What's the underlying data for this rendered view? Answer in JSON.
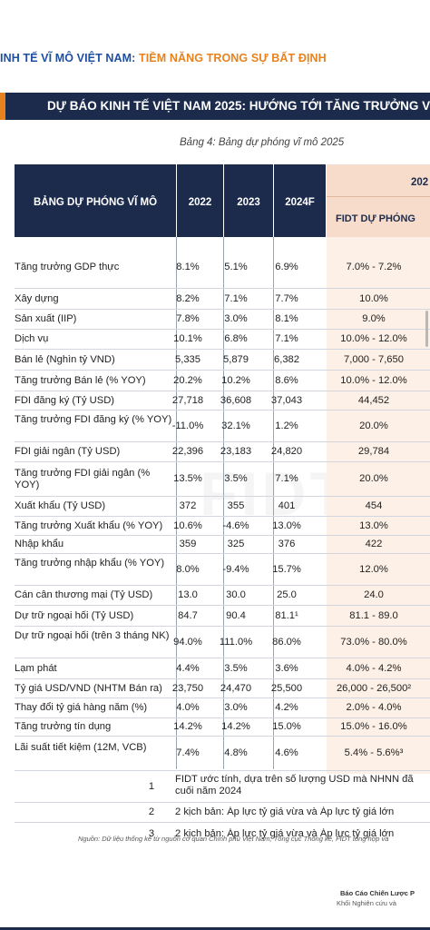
{
  "header": {
    "part1": "INH TẾ VĨ MÔ VIỆT NAM: ",
    "part2": "TIỀM NĂNG TRONG SỰ BẤT ĐỊNH"
  },
  "banner": {
    "title": "DỰ BÁO KINH TẾ VIỆT NAM 2025: HƯỚNG TỚI TĂNG TRƯỞNG V"
  },
  "caption": "Bảng 4: Bảng dự phóng vĩ mô 2025",
  "table": {
    "header": {
      "label": "BẢNG DỰ PHÓNG VĨ MÔ",
      "y2022": "2022",
      "y2023": "2023",
      "y2024": "2024F",
      "forecast_year": "202",
      "fidt": "FIDT DỰ PHÓNG"
    },
    "rows": [
      {
        "label": "Tăng trưởng GDP thực",
        "v1": "8.1%",
        "v2": "5.1%",
        "v3": "6.9%",
        "f": "7.0% - 7.2%"
      },
      {
        "label": "Xây dựng",
        "v1": "8.2%",
        "v2": "7.1%",
        "v3": "7.7%",
        "f": "10.0%"
      },
      {
        "label": "Sản xuất (IIP)",
        "v1": "7.8%",
        "v2": "3.0%",
        "v3": "8.1%",
        "f": "9.0%"
      },
      {
        "label": "Dịch vụ",
        "v1": "10.1%",
        "v2": "6.8%",
        "v3": "7.1%",
        "f": "10.0% - 12.0%"
      },
      {
        "label": "Bán lẻ (Nghìn tỷ VND)",
        "v1": "5,335",
        "v2": "5,879",
        "v3": "6,382",
        "f": "7,000 - 7,650"
      },
      {
        "label": "Tăng trưởng Bán lẻ (% YOY)",
        "v1": "20.2%",
        "v2": "10.2%",
        "v3": "8.6%",
        "f": "10.0% - 12.0%"
      },
      {
        "label": "FDI đăng ký (Tỷ USD)",
        "v1": "27,718",
        "v2": "36,608",
        "v3": "37,043",
        "f": "44,452"
      },
      {
        "label": "Tăng trưởng FDI đăng ký (% YOY)",
        "v1": "-11.0%",
        "v2": "32.1%",
        "v3": "1.2%",
        "f": "20.0%"
      },
      {
        "label": "FDI giải ngân (Tỷ USD)",
        "v1": "22,396",
        "v2": "23,183",
        "v3": "24,820",
        "f": "29,784"
      },
      {
        "label": "Tăng trưởng FDI giải ngân (% YOY)",
        "v1": "13.5%",
        "v2": "3.5%",
        "v3": "7.1%",
        "f": "20.0%"
      },
      {
        "label": "Xuất khẩu (Tỷ USD)",
        "v1": "372",
        "v2": "355",
        "v3": "401",
        "f": "454"
      },
      {
        "label": "Tăng trưởng Xuất khẩu (% YOY)",
        "v1": "10.6%",
        "v2": "-4.6%",
        "v3": "13.0%",
        "f": "13.0%"
      },
      {
        "label": "Nhập khẩu",
        "v1": "359",
        "v2": "325",
        "v3": "376",
        "f": "422"
      },
      {
        "label": "Tăng trưởng nhập khẩu (% YOY)",
        "v1": "8.0%",
        "v2": "-9.4%",
        "v3": "15.7%",
        "f": "12.0%"
      },
      {
        "label": "Cán cân thương mại (Tỷ USD)",
        "v1": "13.0",
        "v2": "30.0",
        "v3": "25.0",
        "f": "24.0"
      },
      {
        "label": "Dự trữ ngoại hối (Tỷ USD)",
        "v1": "84.7",
        "v2": "90.4",
        "v3": "81.1¹",
        "f": "81.1 - 89.0"
      },
      {
        "label": "Dự trữ ngoại hối (trên 3 tháng NK)",
        "v1": "94.0%",
        "v2": "111.0%",
        "v3": "86.0%",
        "f": "73.0% - 80.0%"
      },
      {
        "label": "Lạm phát",
        "v1": "4.4%",
        "v2": "3.5%",
        "v3": "3.6%",
        "f": "4.0% - 4.2%"
      },
      {
        "label": "Tỷ giá USD/VND (NHTM Bán ra)",
        "v1": "23,750",
        "v2": "24,470",
        "v3": "25,500",
        "f": "26,000 - 26,500²"
      },
      {
        "label": "Thay đổi tỷ giá hàng năm (%)",
        "v1": "4.0%",
        "v2": "3.0%",
        "v3": "4.2%",
        "f": "2.0% - 4.0%"
      },
      {
        "label": "Tăng trưởng tín dụng",
        "v1": "14.2%",
        "v2": "14.2%",
        "v3": "15.0%",
        "f": "15.0% - 16.0%"
      },
      {
        "label": "Lãi suất tiết kiệm (12M, VCB)",
        "v1": "7.4%",
        "v2": "4.8%",
        "v3": "4.6%",
        "f": "5.4% - 5.6%³"
      }
    ],
    "notes": [
      {
        "n": "1",
        "line1": "FIDT ước tính, dựa trên số lượng USD mà NHNN đã",
        "line2": "cuối năm 2024"
      },
      {
        "n": "2",
        "line1": "2 kịch bản: Áp lực tỷ giá vừa và Áp lực tỷ giá lớn"
      },
      {
        "n": "3",
        "line1": "2 kịch bản: Áp lực tỷ giá vừa và Áp lực tỷ giá lớn"
      }
    ]
  },
  "source": "Nguồn: Dữ liệu thống kê từ nguồn cơ quan Chính phủ Việt Nam, Tổng cục Thống kê, FIDT tổng hợp và",
  "footer": {
    "line1": "Báo Cáo Chiến Lược P",
    "line2": "Khối Nghiên cứu và"
  },
  "watermark": "FIDT",
  "colors": {
    "navy": "#1c2b4c",
    "orange": "#e8821e",
    "blue": "#1f4fa0",
    "fidt_header": "#f7dccb",
    "fidt_column": "#fdf0e6"
  }
}
